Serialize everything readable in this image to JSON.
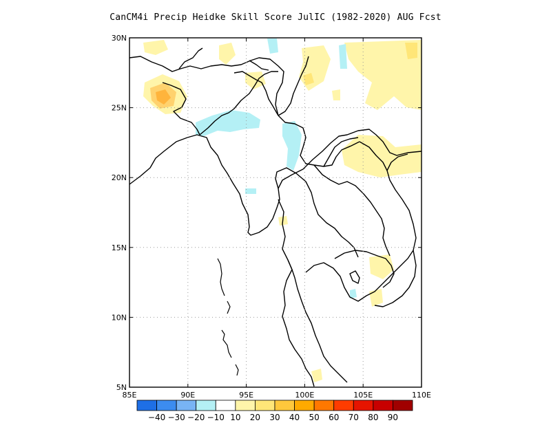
{
  "title": "CanCM4i Precip Heidke Skill Score JulIC (1982-2020) AUG Fcst",
  "map": {
    "lon_range": [
      85,
      110
    ],
    "lat_range": [
      5,
      30
    ],
    "x_ticks": [
      "85E",
      "90E",
      "95E",
      "100E",
      "105E",
      "110E"
    ],
    "y_ticks": [
      "5N",
      "10N",
      "15N",
      "20N",
      "25N",
      "30N"
    ],
    "grid": "dotted"
  },
  "colorbar": {
    "labels": [
      "-40",
      "-30",
      "-20",
      "-10",
      "10",
      "20",
      "30",
      "40",
      "50",
      "60",
      "70",
      "80",
      "90"
    ],
    "colors": [
      "#1e6fe6",
      "#3c8cf0",
      "#78b4f5",
      "#b4f0f5",
      "#ffffff",
      "#fff5aa",
      "#ffe678",
      "#ffc83c",
      "#ffaa00",
      "#ff7800",
      "#ff3c00",
      "#e61400",
      "#c80000",
      "#a00000"
    ]
  },
  "features": {
    "positive_color": "#fff5aa",
    "strong_positive_color": "#ffc83c",
    "negative_color": "#b4f0f5",
    "coastline_color": "#000000"
  }
}
